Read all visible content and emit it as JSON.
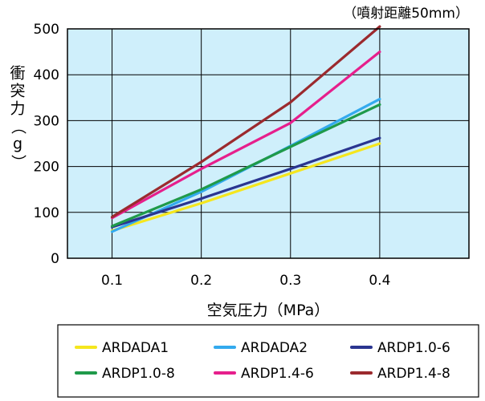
{
  "chart_data": {
    "type": "line",
    "annotation": "（噴射距離50mm）",
    "xlabel": "空気圧力（MPa）",
    "ylabel": "衝突力（g）",
    "x_ticks": [
      "0.1",
      "0.2",
      "0.3",
      "0.4"
    ],
    "y_ticks": [
      "0",
      "100",
      "200",
      "300",
      "400",
      "500"
    ],
    "xlim": [
      0.05,
      0.5
    ],
    "ylim": [
      0,
      500
    ],
    "grid": true,
    "legend_position": "bottom",
    "series": [
      {
        "name": "ARDADA1",
        "color": "#f5e61e",
        "x": [
          0.1,
          0.2,
          0.3,
          0.4
        ],
        "y": [
          60,
          120,
          185,
          250
        ]
      },
      {
        "name": "ARDADA2",
        "color": "#33aaee",
        "x": [
          0.1,
          0.2,
          0.3,
          0.4
        ],
        "y": [
          58,
          145,
          245,
          347
        ]
      },
      {
        "name": "ARDP1.0-6",
        "color": "#2a3590",
        "x": [
          0.1,
          0.2,
          0.3,
          0.4
        ],
        "y": [
          68,
          130,
          195,
          262
        ]
      },
      {
        "name": "ARDP1.0-8",
        "color": "#1f9a4a",
        "x": [
          0.1,
          0.2,
          0.3,
          0.4
        ],
        "y": [
          70,
          150,
          243,
          335
        ]
      },
      {
        "name": "ARDP1.4-6",
        "color": "#e61f8c",
        "x": [
          0.1,
          0.2,
          0.3,
          0.4
        ],
        "y": [
          88,
          195,
          295,
          450
        ]
      },
      {
        "name": "ARDP1.4-8",
        "color": "#9b2a2e",
        "x": [
          0.1,
          0.2,
          0.3,
          0.4
        ],
        "y": [
          90,
          210,
          340,
          505
        ]
      }
    ]
  }
}
